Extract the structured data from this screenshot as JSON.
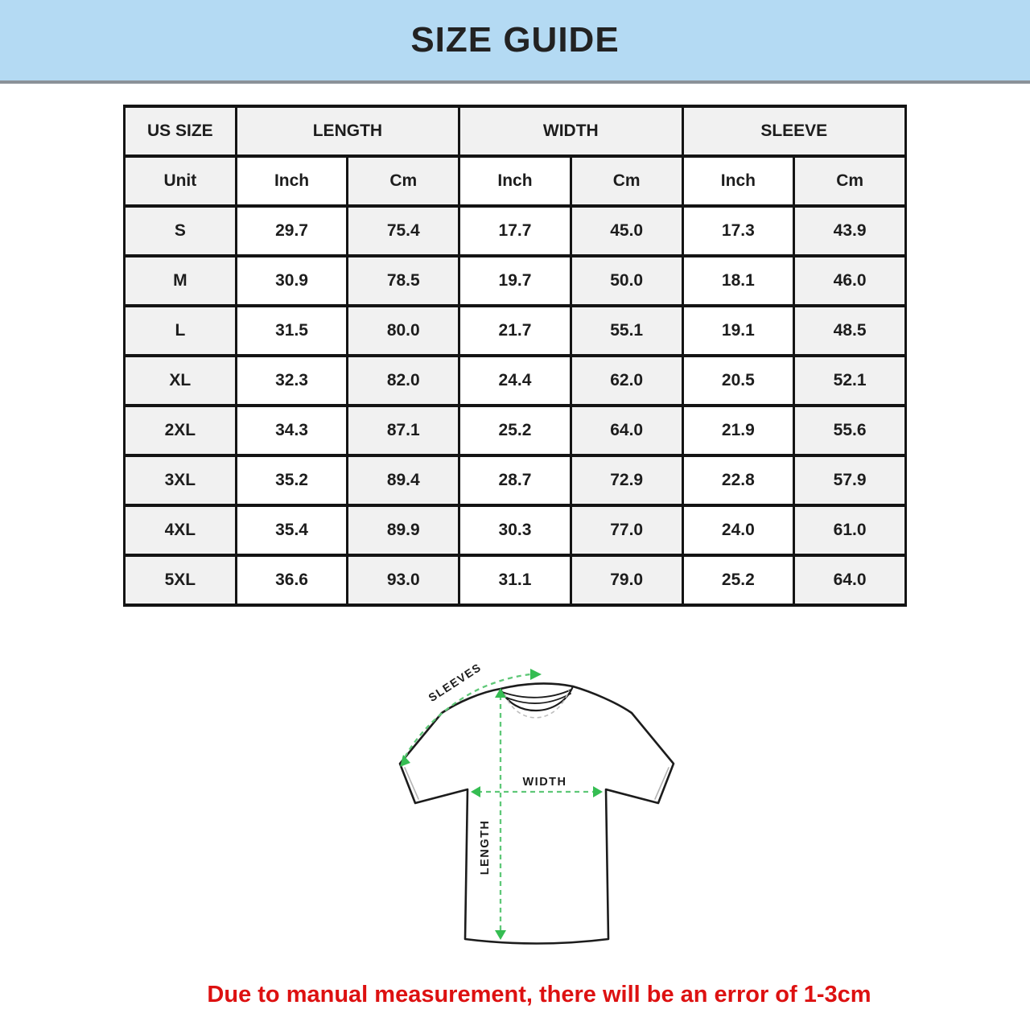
{
  "banner": {
    "title": "SIZE GUIDE"
  },
  "table": {
    "size_header": "US SIZE",
    "group_headers": [
      "LENGTH",
      "WIDTH",
      "SLEEVE"
    ],
    "unit_label": "Unit",
    "unit_cells": [
      "Inch",
      "Cm",
      "Inch",
      "Cm",
      "Inch",
      "Cm"
    ],
    "rows": [
      {
        "size": "S",
        "values": [
          "29.7",
          "75.4",
          "17.7",
          "45.0",
          "17.3",
          "43.9"
        ]
      },
      {
        "size": "M",
        "values": [
          "30.9",
          "78.5",
          "19.7",
          "50.0",
          "18.1",
          "46.0"
        ]
      },
      {
        "size": "L",
        "values": [
          "31.5",
          "80.0",
          "21.7",
          "55.1",
          "19.1",
          "48.5"
        ]
      },
      {
        "size": "XL",
        "values": [
          "32.3",
          "82.0",
          "24.4",
          "62.0",
          "20.5",
          "52.1"
        ]
      },
      {
        "size": "2XL",
        "values": [
          "34.3",
          "87.1",
          "25.2",
          "64.0",
          "21.9",
          "55.6"
        ]
      },
      {
        "size": "3XL",
        "values": [
          "35.2",
          "89.4",
          "28.7",
          "72.9",
          "22.8",
          "57.9"
        ]
      },
      {
        "size": "4XL",
        "values": [
          "35.4",
          "89.9",
          "30.3",
          "77.0",
          "24.0",
          "61.0"
        ]
      },
      {
        "size": "5XL",
        "values": [
          "36.6",
          "93.0",
          "31.1",
          "79.0",
          "25.2",
          "64.0"
        ]
      }
    ]
  },
  "diagram": {
    "sleeves_label": "SLEEVES",
    "width_label": "WIDTH",
    "length_label": "LENGTH"
  },
  "footnote": {
    "text": "Due to manual measurement, there will be an error of 1-3cm"
  },
  "colors": {
    "banner_bg": "#b4daf3",
    "banner_border": "#8b9198",
    "table_line": "#141414",
    "cell_gray": "#f1f1f1",
    "green_line": "#5fc878",
    "green_fill": "#35bd52",
    "red": "#dd1111",
    "ink": "#1c1c1c"
  }
}
